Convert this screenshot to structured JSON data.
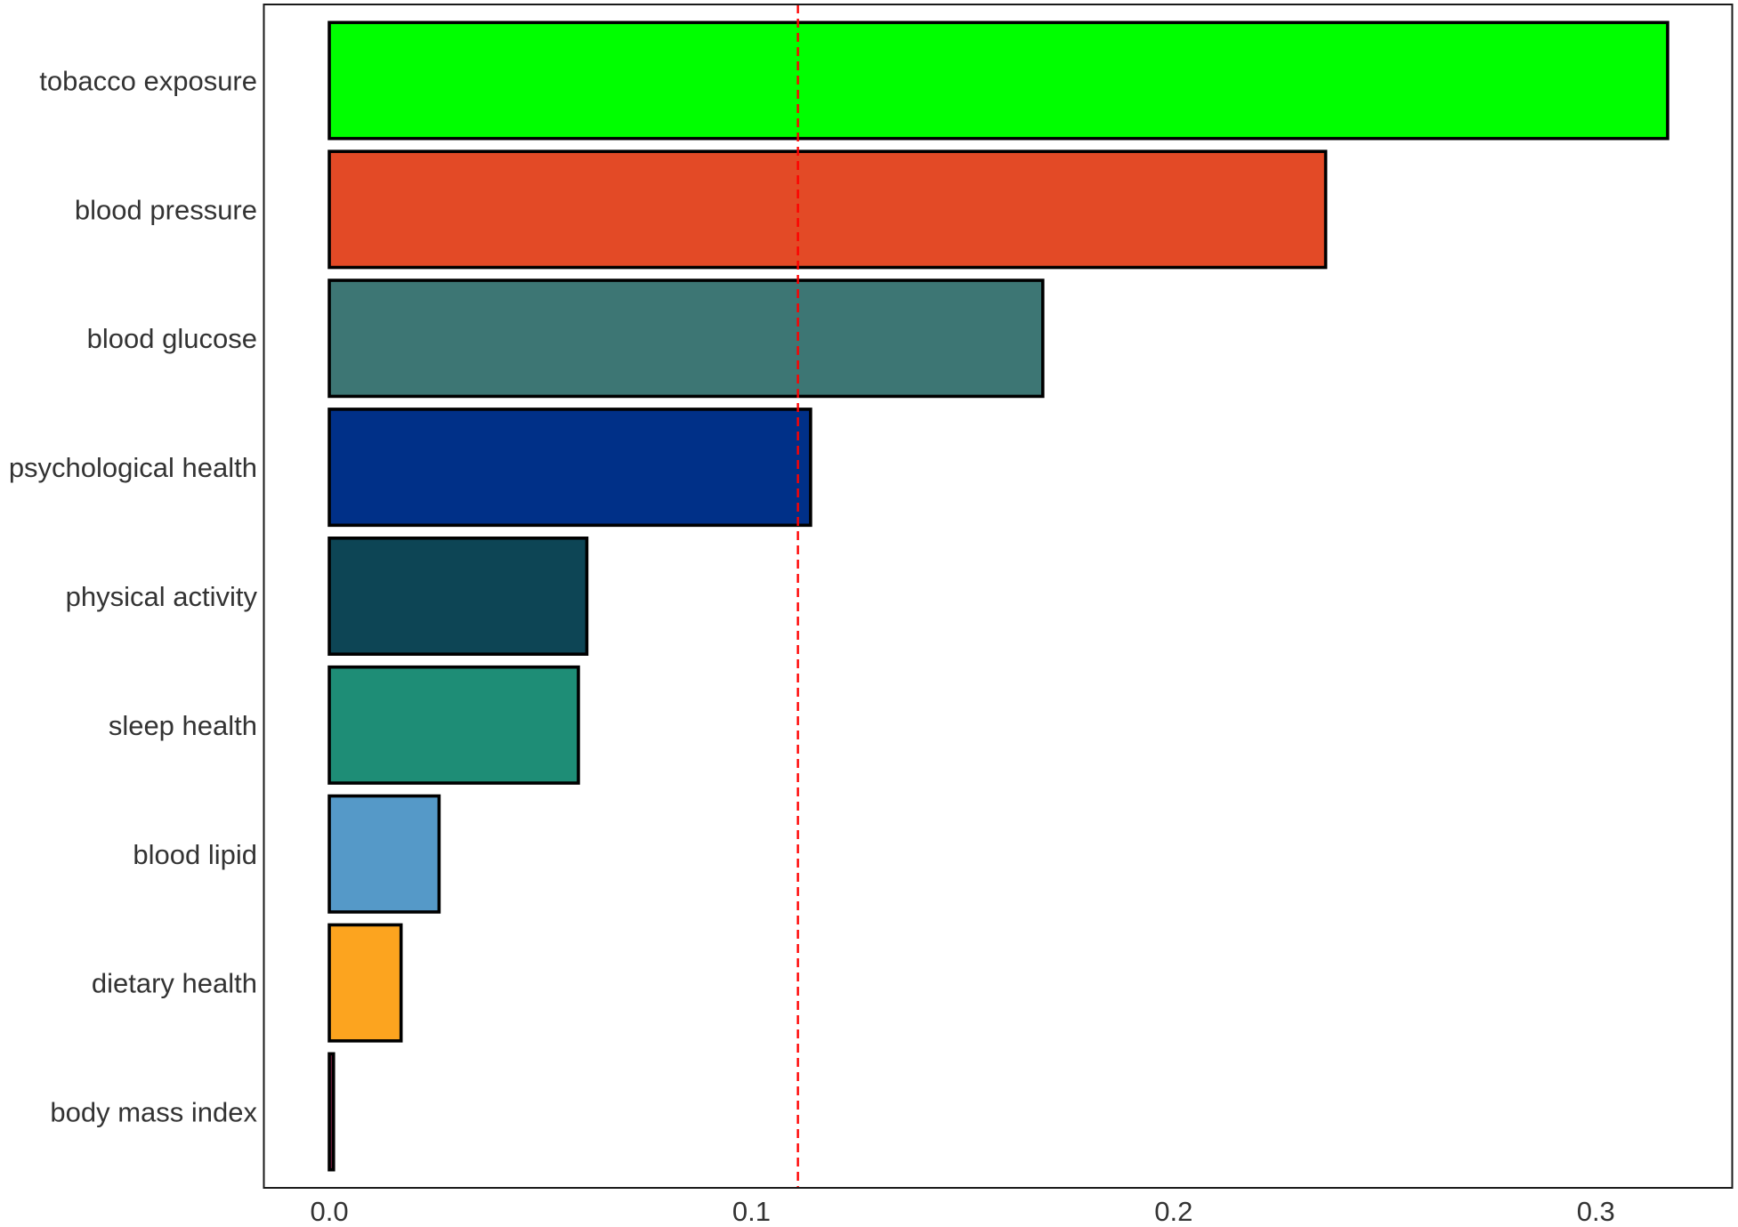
{
  "chart_data": {
    "type": "bar",
    "orientation": "horizontal",
    "categories": [
      "tobacco exposure",
      "blood pressure",
      "blood glucose",
      "psychological health",
      "physical activity",
      "sleep health",
      "blood lipid",
      "dietary health",
      "body mass index"
    ],
    "values": [
      0.317,
      0.236,
      0.169,
      0.114,
      0.061,
      0.059,
      0.026,
      0.017,
      0.001
    ],
    "colors": [
      "#00FF00",
      "#E34A26",
      "#3D7674",
      "#003088",
      "#0D4555",
      "#1E8D76",
      "#5599C8",
      "#FCA41F",
      "#6B1E3A"
    ],
    "bar_edge_color": "#000000",
    "reference_line": {
      "x": 0.111,
      "style": "dashed",
      "color": "#FF0000"
    },
    "xlim": [
      -0.0155,
      0.3323
    ],
    "xticks": [
      0.0,
      0.1,
      0.2,
      0.3
    ],
    "xtick_labels": [
      "0.0",
      "0.1",
      "0.2",
      "0.3"
    ],
    "grid": false
  }
}
